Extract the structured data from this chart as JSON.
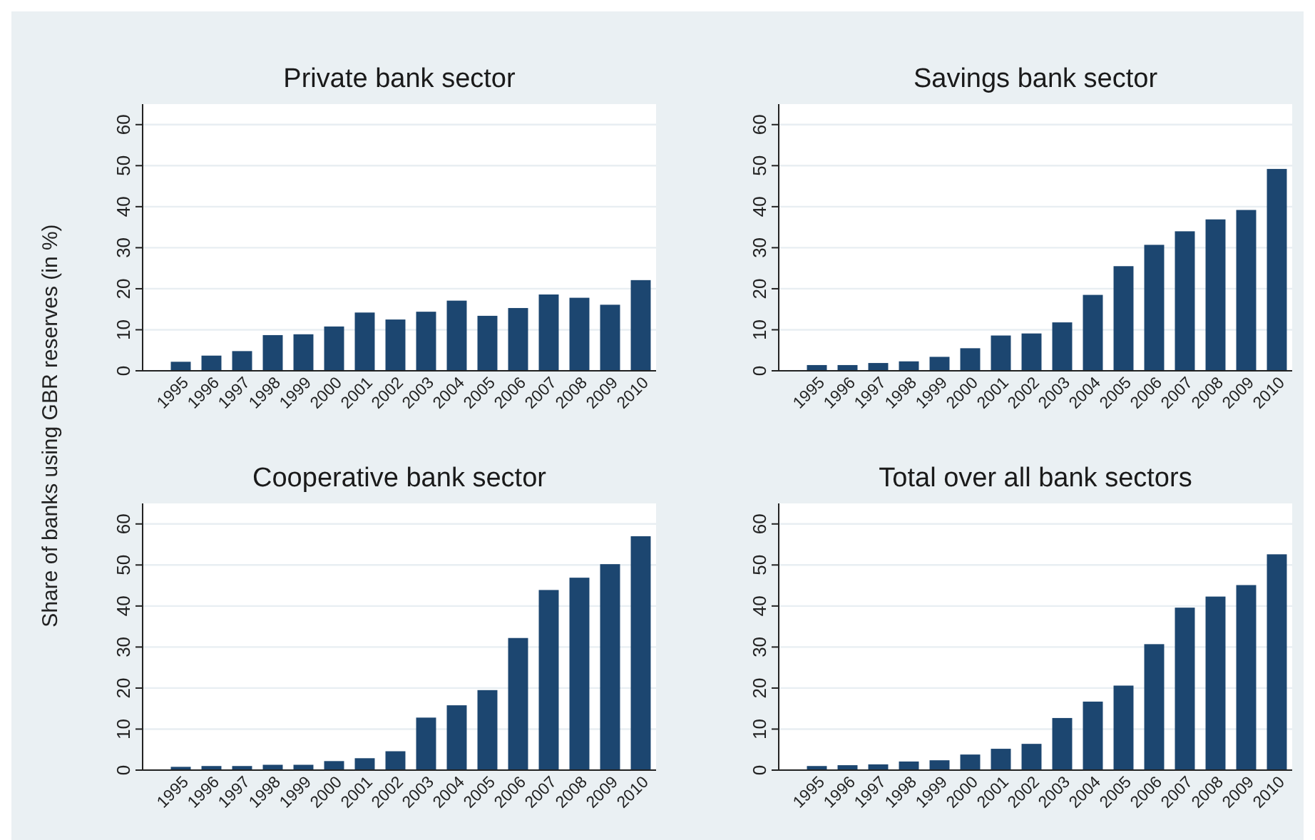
{
  "chart_data": [
    {
      "type": "bar",
      "title": "Private bank sector",
      "ylabel": "Share of banks using GBR reserves (in %)",
      "categories": [
        "1995",
        "1996",
        "1997",
        "1998",
        "1999",
        "2000",
        "2001",
        "2002",
        "2003",
        "2004",
        "2005",
        "2006",
        "2007",
        "2008",
        "2009",
        "2010"
      ],
      "values": [
        2.2,
        3.7,
        4.8,
        8.7,
        8.9,
        10.8,
        14.2,
        12.5,
        14.4,
        17.1,
        13.4,
        15.3,
        18.6,
        17.8,
        16.1,
        22.1
      ],
      "color": "#1c4670",
      "ylim": [
        0,
        65
      ],
      "yticks": [
        0,
        10,
        20,
        30,
        40,
        50,
        60
      ],
      "grid": "y"
    },
    {
      "type": "bar",
      "title": "Savings bank sector",
      "categories": [
        "1995",
        "1996",
        "1997",
        "1998",
        "1999",
        "2000",
        "2001",
        "2002",
        "2003",
        "2004",
        "2005",
        "2006",
        "2007",
        "2008",
        "2009",
        "2010"
      ],
      "values": [
        1.4,
        1.4,
        1.9,
        2.3,
        3.4,
        5.5,
        8.6,
        9.1,
        11.8,
        18.5,
        25.5,
        30.7,
        34.0,
        36.9,
        39.2,
        49.2
      ],
      "color": "#1c4670",
      "ylim": [
        0,
        65
      ],
      "yticks": [
        0,
        10,
        20,
        30,
        40,
        50,
        60
      ],
      "grid": "y"
    },
    {
      "type": "bar",
      "title": "Cooperative bank sector",
      "categories": [
        "1995",
        "1996",
        "1997",
        "1998",
        "1999",
        "2000",
        "2001",
        "2002",
        "2003",
        "2004",
        "2005",
        "2006",
        "2007",
        "2008",
        "2009",
        "2010"
      ],
      "values": [
        0.8,
        1.0,
        1.0,
        1.3,
        1.3,
        2.2,
        2.9,
        4.6,
        12.8,
        15.8,
        19.5,
        32.2,
        43.9,
        46.9,
        50.2,
        57.0
      ],
      "color": "#1c4670",
      "ylim": [
        0,
        65
      ],
      "yticks": [
        0,
        10,
        20,
        30,
        40,
        50,
        60
      ],
      "grid": "y"
    },
    {
      "type": "bar",
      "title": "Total over all bank sectors",
      "categories": [
        "1995",
        "1996",
        "1997",
        "1998",
        "1999",
        "2000",
        "2001",
        "2002",
        "2003",
        "2004",
        "2005",
        "2006",
        "2007",
        "2008",
        "2009",
        "2010"
      ],
      "values": [
        1.0,
        1.2,
        1.4,
        2.1,
        2.4,
        3.8,
        5.2,
        6.4,
        12.7,
        16.7,
        20.6,
        30.7,
        39.6,
        42.3,
        45.1,
        52.6
      ],
      "color": "#1c4670",
      "ylim": [
        0,
        65
      ],
      "yticks": [
        0,
        10,
        20,
        30,
        40,
        50,
        60
      ],
      "grid": "y"
    }
  ]
}
